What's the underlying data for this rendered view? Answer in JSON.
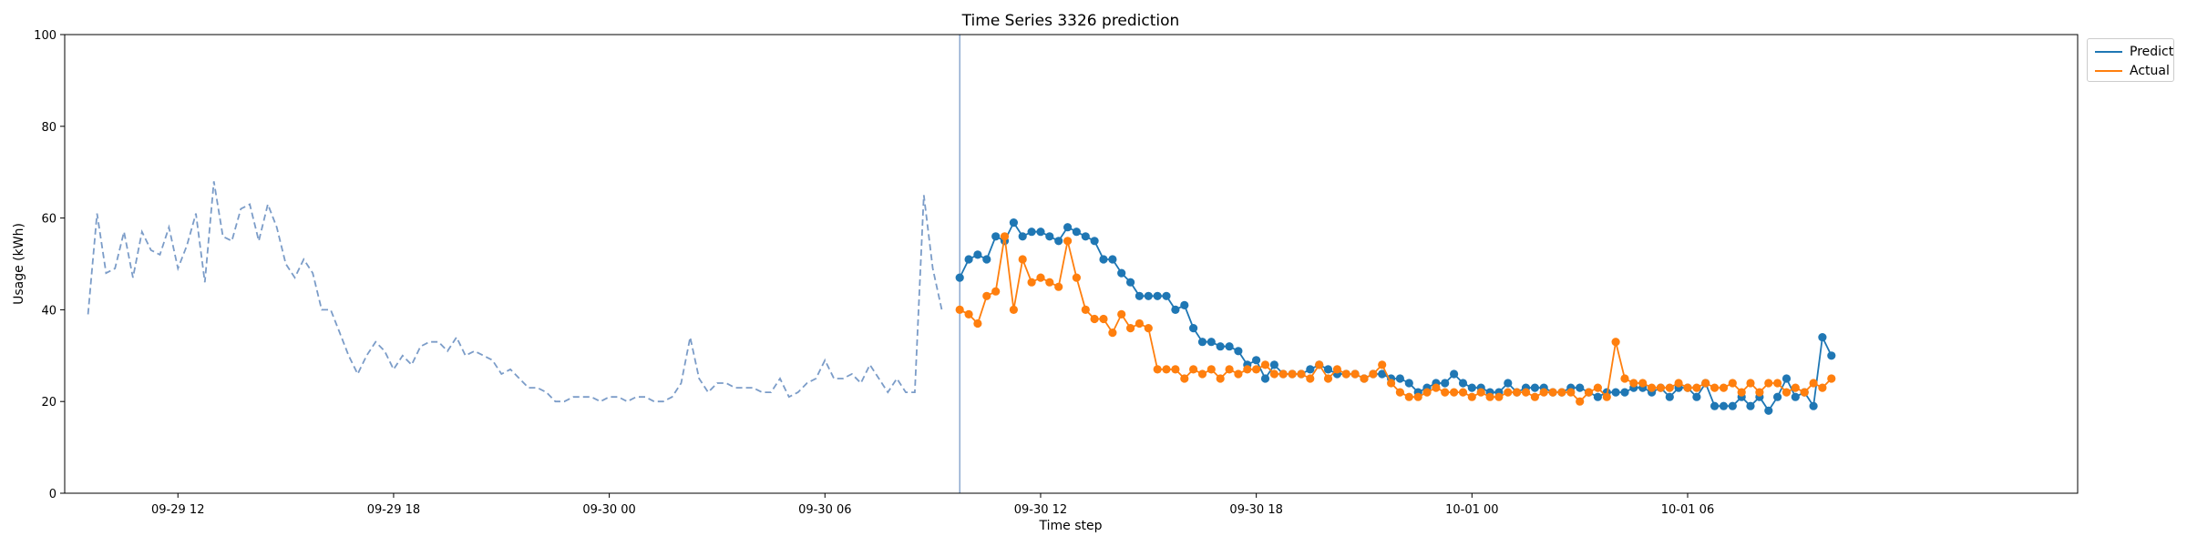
{
  "chart_data": {
    "type": "line",
    "title": "Time Series 3326 prediction",
    "xlabel": "Time step",
    "ylabel": "Usage (kWh)",
    "ylim": [
      0,
      100
    ],
    "yticks": [
      0,
      20,
      40,
      60,
      80,
      100
    ],
    "xlim": [
      -12.6,
      211.4
    ],
    "xticks": [
      {
        "label": "09-29 12",
        "t": 0
      },
      {
        "label": "09-29 18",
        "t": 24
      },
      {
        "label": "09-30 00",
        "t": 48
      },
      {
        "label": "09-30 06",
        "t": 72
      },
      {
        "label": "09-30 12",
        "t": 96
      },
      {
        "label": "09-30 18",
        "t": 120
      },
      {
        "label": "10-01 00",
        "t": 144
      },
      {
        "label": "10-01 06",
        "t": 168
      }
    ],
    "time_unit": "15 min",
    "forecast_start": 87,
    "legend_position": "top-right (outside)",
    "colors": {
      "history": "#7b9cc8",
      "predict": "#1f77b4",
      "actual": "#ff7f0e",
      "divider": "#7b9cc8"
    },
    "history": {
      "start": -10,
      "values": [
        39,
        61,
        48,
        49,
        57,
        47,
        57,
        53,
        52,
        58,
        49,
        54,
        61,
        46,
        68,
        56,
        55,
        62,
        63,
        55,
        63,
        58,
        50,
        47,
        51,
        48,
        40,
        40,
        35,
        30,
        26,
        30,
        33,
        31,
        27,
        30,
        28,
        32,
        33,
        33,
        31,
        34,
        30,
        31,
        30,
        29,
        26,
        27,
        25,
        23,
        23,
        22,
        20,
        20,
        21,
        21,
        21,
        20,
        21,
        21,
        20,
        21,
        21,
        20,
        20,
        21,
        24,
        34,
        25,
        22,
        24,
        24,
        23,
        23,
        23,
        22,
        22,
        25,
        21,
        22,
        24,
        25,
        29,
        25,
        25,
        26,
        24,
        28,
        25,
        22,
        25,
        22,
        22,
        65,
        49,
        40
      ]
    },
    "series": [
      {
        "name": "Predict",
        "start": 87,
        "values": [
          47,
          51,
          52,
          51,
          56,
          55,
          59,
          56,
          57,
          57,
          56,
          55,
          58,
          57,
          56,
          55,
          51,
          51,
          48,
          46,
          43,
          43,
          43,
          43,
          40,
          41,
          36,
          33,
          33,
          32,
          32,
          31,
          28,
          29,
          25,
          28,
          26,
          26,
          26,
          27,
          28,
          27,
          26,
          26,
          26,
          25,
          26,
          26,
          25,
          25,
          24,
          22,
          23,
          24,
          24,
          26,
          24,
          23,
          23,
          22,
          22,
          24,
          22,
          23,
          23,
          23,
          22,
          22,
          23,
          23,
          22,
          21,
          22,
          22,
          22,
          23,
          23,
          22,
          23,
          21,
          23,
          23,
          21,
          24,
          19,
          19,
          19,
          21,
          19,
          21,
          18,
          21,
          25,
          21,
          22,
          19,
          34,
          30
        ]
      },
      {
        "name": "Actual",
        "start": 87,
        "values": [
          40,
          39,
          37,
          43,
          44,
          56,
          40,
          51,
          46,
          47,
          46,
          45,
          55,
          47,
          40,
          38,
          38,
          35,
          39,
          36,
          37,
          36,
          27,
          27,
          27,
          25,
          27,
          26,
          27,
          25,
          27,
          26,
          27,
          27,
          28,
          26,
          26,
          26,
          26,
          25,
          28,
          25,
          27,
          26,
          26,
          25,
          26,
          28,
          24,
          22,
          21,
          21,
          22,
          23,
          22,
          22,
          22,
          21,
          22,
          21,
          21,
          22,
          22,
          22,
          21,
          22,
          22,
          22,
          22,
          20,
          22,
          23,
          21,
          33,
          25,
          24,
          24,
          23,
          23,
          23,
          24,
          23,
          23,
          24,
          23,
          23,
          24,
          22,
          24,
          22,
          24,
          24,
          22,
          23,
          22,
          24,
          23,
          25
        ]
      }
    ]
  }
}
